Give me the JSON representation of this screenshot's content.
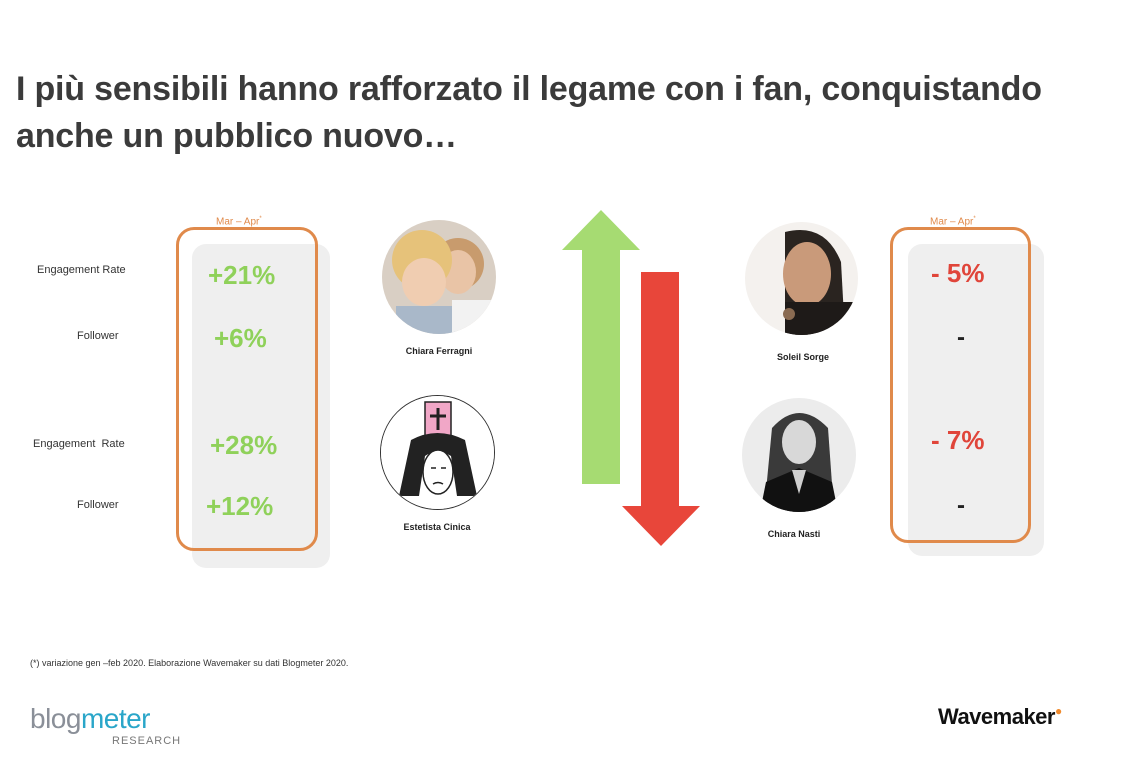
{
  "title": "I più sensibili hanno rafforzato il legame con i fan, conquistando anche un pubblico nuovo…",
  "left_panel": {
    "period": "Mar – Apr",
    "period_mark": "*",
    "rows": [
      {
        "label": "Engagement Rate",
        "value": "+21%"
      },
      {
        "label": "Follower",
        "value": "+6%"
      },
      {
        "label": "Engagement  Rate",
        "value": "+28%"
      },
      {
        "label": "Follower",
        "value": "+12%"
      }
    ]
  },
  "right_panel": {
    "period": "Mar – Apr",
    "period_mark": "*",
    "values": [
      "- 5%",
      "-",
      "- 7%",
      "-"
    ]
  },
  "influencers": [
    {
      "name": "Chiara Ferragni",
      "icon": "chiara-ferragni-photo"
    },
    {
      "name": "Estetista Cinica",
      "icon": "estetista-cinica-illustration"
    },
    {
      "name": "Soleil Sorge",
      "icon": "soleil-sorge-photo"
    },
    {
      "name": "Chiara Nasti",
      "icon": "chiara-nasti-photo"
    }
  ],
  "arrows": {
    "up_color": "#a6db72",
    "down_color": "#e8463a"
  },
  "footnote": "(*) variazione gen –feb 2020. Elaborazione Wavemaker su dati Blogmeter 2020.",
  "logos": {
    "blogmeter_a": "blog",
    "blogmeter_b": "meter",
    "blogmeter_sub": "RESEARCH",
    "wavemaker": "Wavemaker",
    "wavemaker_dot": "●"
  },
  "colors": {
    "accent": "#e08a4b",
    "positive": "#8fd15a",
    "negative": "#e0453a"
  }
}
